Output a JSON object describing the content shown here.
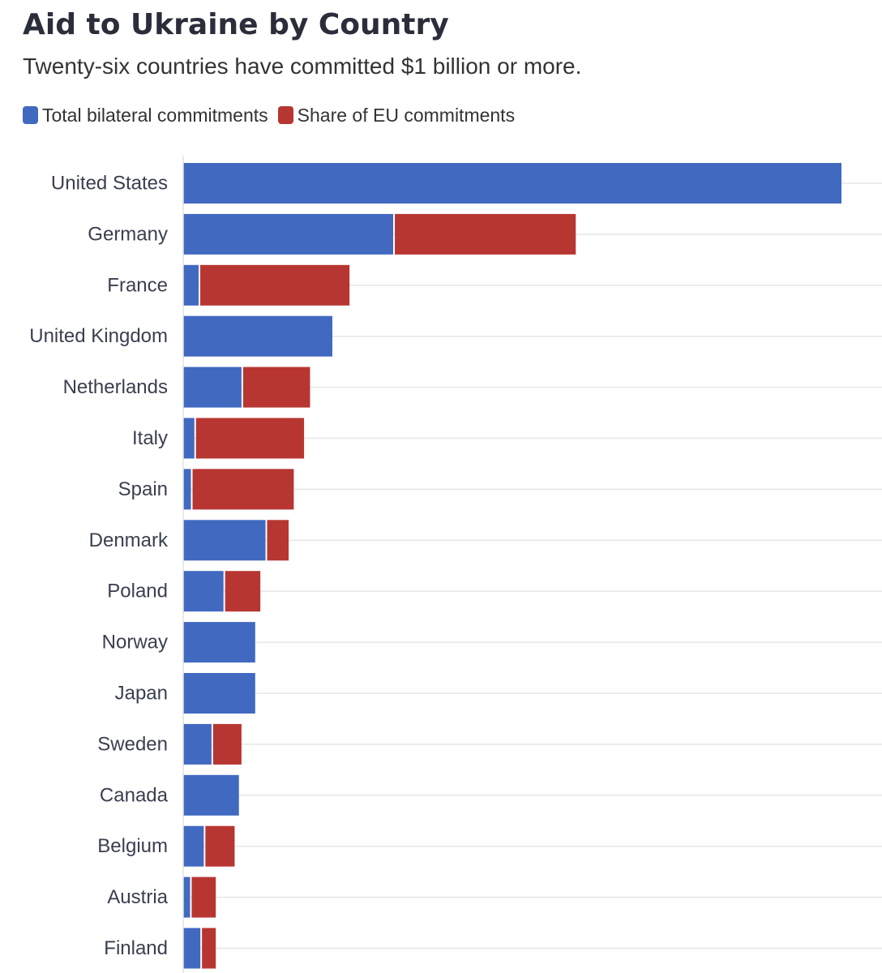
{
  "chart_data": {
    "type": "bar",
    "orientation": "horizontal",
    "stacked": true,
    "title": "Aid to Ukraine by Country",
    "subtitle": "Twenty-six countries have committed $1 billion or more.",
    "categories": [
      "United States",
      "Germany",
      "France",
      "United Kingdom",
      "Netherlands",
      "Italy",
      "Spain",
      "Denmark",
      "Poland",
      "Norway",
      "Japan",
      "Sweden",
      "Canada",
      "Belgium",
      "Austria",
      "Finland"
    ],
    "series": [
      {
        "name": "Total bilateral commitments",
        "color": "#4169c0",
        "values": [
          76.8,
          24.5,
          1.8,
          17.4,
          6.8,
          1.3,
          0.9,
          9.6,
          4.7,
          8.4,
          8.4,
          3.3,
          6.5,
          2.4,
          0.8,
          2.0
        ]
      },
      {
        "name": "Share of EU commitments",
        "color": "#b83631",
        "values": [
          0,
          21.3,
          17.6,
          0,
          8.0,
          12.8,
          12.0,
          2.7,
          4.3,
          0,
          0,
          3.5,
          0,
          3.6,
          3.0,
          1.8
        ]
      }
    ],
    "xlim": [
      0,
      80
    ],
    "xgrid": false,
    "ygrid": true,
    "legend_position": "top-left"
  }
}
